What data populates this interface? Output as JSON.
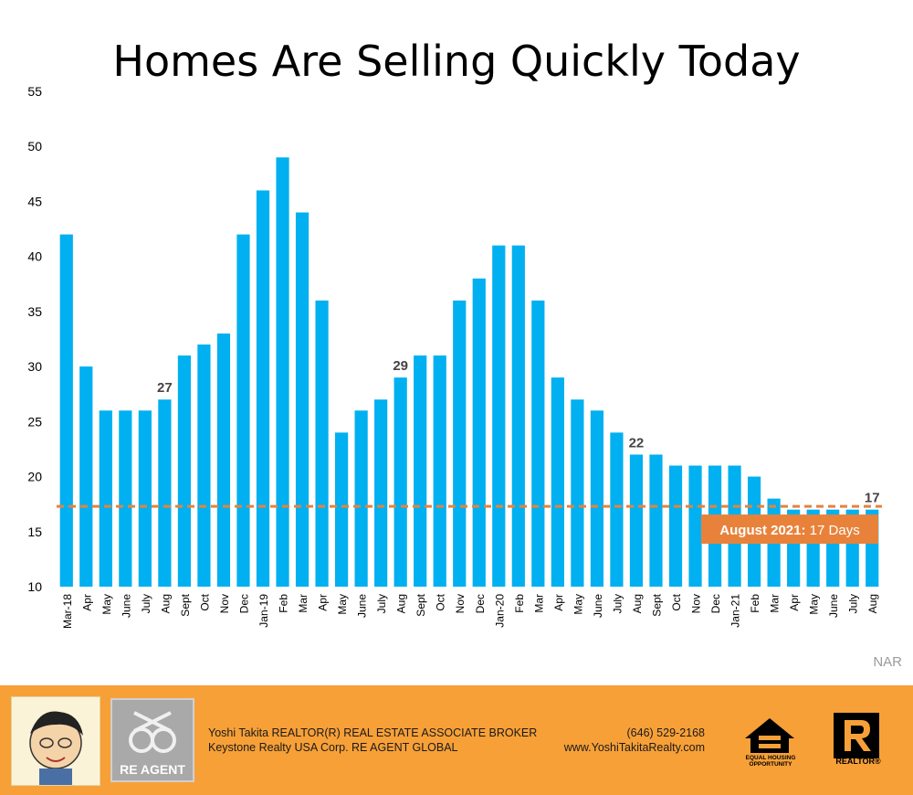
{
  "chart_data": {
    "type": "bar",
    "title": "Homes Are Selling Quickly Today",
    "categories": [
      "Mar-18",
      "Apr",
      "May",
      "June",
      "July",
      "Aug",
      "Sept",
      "Oct",
      "Nov",
      "Dec",
      "Jan-19",
      "Feb",
      "Mar",
      "Apr",
      "May",
      "June",
      "July",
      "Aug",
      "Sept",
      "Oct",
      "Nov",
      "Dec",
      "Jan-20",
      "Feb",
      "Mar",
      "Apr",
      "May",
      "June",
      "July",
      "Aug",
      "Sept",
      "Oct",
      "Nov",
      "Dec",
      "Jan-21",
      "Feb",
      "Mar",
      "Apr",
      "May",
      "June",
      "July",
      "Aug"
    ],
    "values": [
      42,
      30,
      26,
      26,
      26,
      27,
      31,
      32,
      33,
      42,
      46,
      49,
      44,
      36,
      24,
      26,
      27,
      29,
      31,
      31,
      36,
      38,
      41,
      41,
      36,
      29,
      27,
      26,
      24,
      22,
      22,
      21,
      21,
      21,
      21,
      20,
      18,
      17,
      17,
      17,
      17,
      17
    ],
    "ylim": [
      10,
      55
    ],
    "yticks": [
      10,
      15,
      20,
      25,
      30,
      35,
      40,
      45,
      50,
      55
    ],
    "data_labels": [
      {
        "index": 5,
        "text": "27"
      },
      {
        "index": 17,
        "text": "29"
      },
      {
        "index": 29,
        "text": "22"
      },
      {
        "index": 41,
        "text": "17"
      }
    ],
    "reference_line": {
      "value": 17.3,
      "style": "dashed",
      "color": "#e8823a"
    },
    "callout": {
      "bold": "August 2021:",
      "rest": " 17 Days"
    },
    "bar_color": "#00b0f0",
    "grid": false
  },
  "source": "NAR",
  "footer": {
    "agent_line1": "Yoshi Takita REALTOR(R) REAL ESTATE ASSOCIATE BROKER",
    "agent_line2": "Keystone Realty USA Corp.  RE AGENT GLOBAL",
    "phone": "(646) 529-2168",
    "website": "www.YoshiTakitaRealty.com",
    "reagent_logo_text": "RE AGENT",
    "eho_text_line1": "EQUAL HOUSING",
    "eho_text_line2": "OPPORTUNITY",
    "realtor_text": "REALTOR®",
    "background": "#f7a038"
  }
}
